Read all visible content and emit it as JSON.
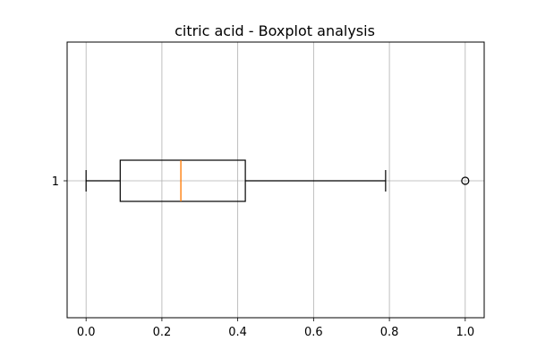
{
  "chart_data": {
    "type": "boxplot",
    "title": "citric acid - Boxplot analysis",
    "orientation": "horizontal",
    "xlim": [
      -0.05,
      1.05
    ],
    "x_ticks": [
      0.0,
      0.2,
      0.4,
      0.6,
      0.8,
      1.0
    ],
    "x_tick_labels": [
      "0.0",
      "0.2",
      "0.4",
      "0.6",
      "0.8",
      "1.0"
    ],
    "y_tick_labels": [
      "1"
    ],
    "grid": true,
    "boxes": [
      {
        "label": "1",
        "whisker_low": 0.0,
        "q1": 0.09,
        "median": 0.25,
        "q3": 0.42,
        "whisker_high": 0.79,
        "outliers": [
          1.0
        ]
      }
    ],
    "colors": {
      "box": "#000000",
      "median": "#ff7f0e",
      "grid": "#b0b0b0"
    }
  }
}
